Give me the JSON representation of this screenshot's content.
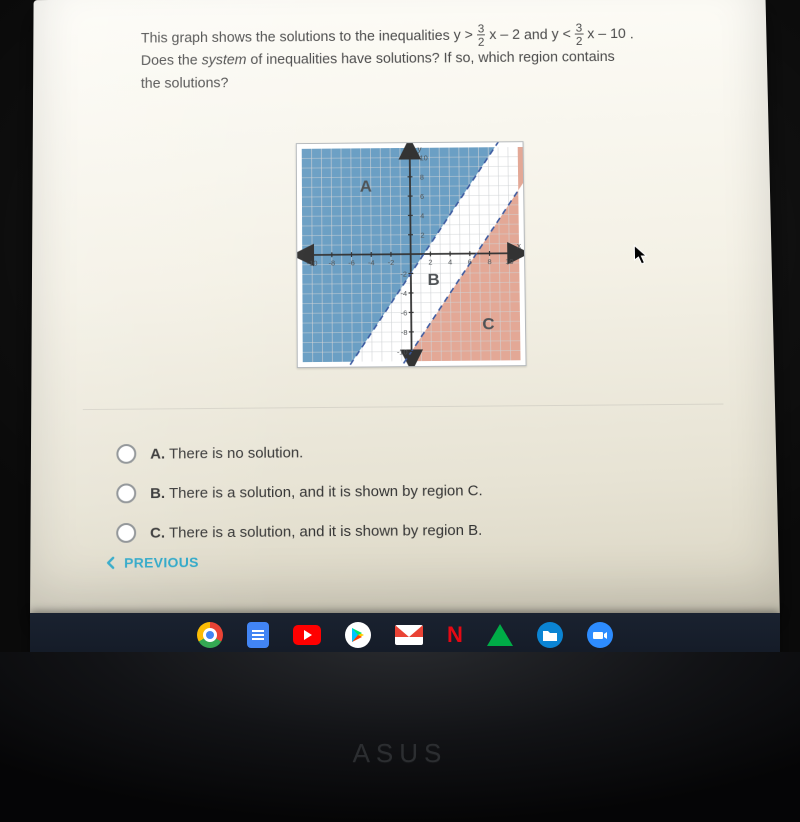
{
  "question": {
    "line1_pre": "This graph shows the solutions to the inequalities ",
    "ineq1_lhs": "y > ",
    "frac1_num": "3",
    "frac1_den": "2",
    "ineq1_rhs": " x – 2",
    "and": " and ",
    "ineq2_lhs": "y < ",
    "frac2_num": "3",
    "frac2_den": "2",
    "ineq2_rhs": " x – 10",
    "period": ".",
    "line2a": "Does the ",
    "line2_em": "system",
    "line2b": " of inequalities have solutions? If so, which region contains",
    "line3": "the solutions?"
  },
  "chart": {
    "xlim": [
      -11,
      11
    ],
    "ylim": [
      -11,
      11
    ],
    "tick_step": 2,
    "grid_color": "#d0d3d6",
    "axis_color": "#333333",
    "bg_color": "#ffffff",
    "regionA_fill": "#6b9fc4",
    "regionC_fill": "#e3a896",
    "line_color": "#3c5aa0",
    "line_dash": "5,4",
    "line_width": 1.6,
    "label_color": "#4f5356",
    "label_A": "A",
    "label_B": "B",
    "label_C": "C",
    "axis_label_y": "y",
    "axis_label_x": "x",
    "tick_font": 7.5,
    "x_ticks": [
      "-10",
      "-8",
      "-6",
      "-4",
      "-2",
      "2",
      "4",
      "6",
      "8",
      "10"
    ],
    "y_ticks_pos": [
      "10",
      "8",
      "6",
      "4",
      "2"
    ],
    "y_ticks_neg": [
      "-2",
      "-4",
      "-6",
      "-8",
      "-10"
    ],
    "line1": {
      "m": 1.5,
      "b": -2
    },
    "line2": {
      "m": 1.5,
      "b": -10
    }
  },
  "options": {
    "A": {
      "letter": "A.",
      "text": "There is no solution."
    },
    "B": {
      "letter": "B.",
      "text": "There is a solution, and it is shown by region C."
    },
    "C": {
      "letter": "C.",
      "text": "There is a solution, and it is shown by region B."
    }
  },
  "prev_label": "PREVIOUS",
  "laptop_logo": "ASUS",
  "taskbar": {
    "netflix_letter": "N"
  }
}
